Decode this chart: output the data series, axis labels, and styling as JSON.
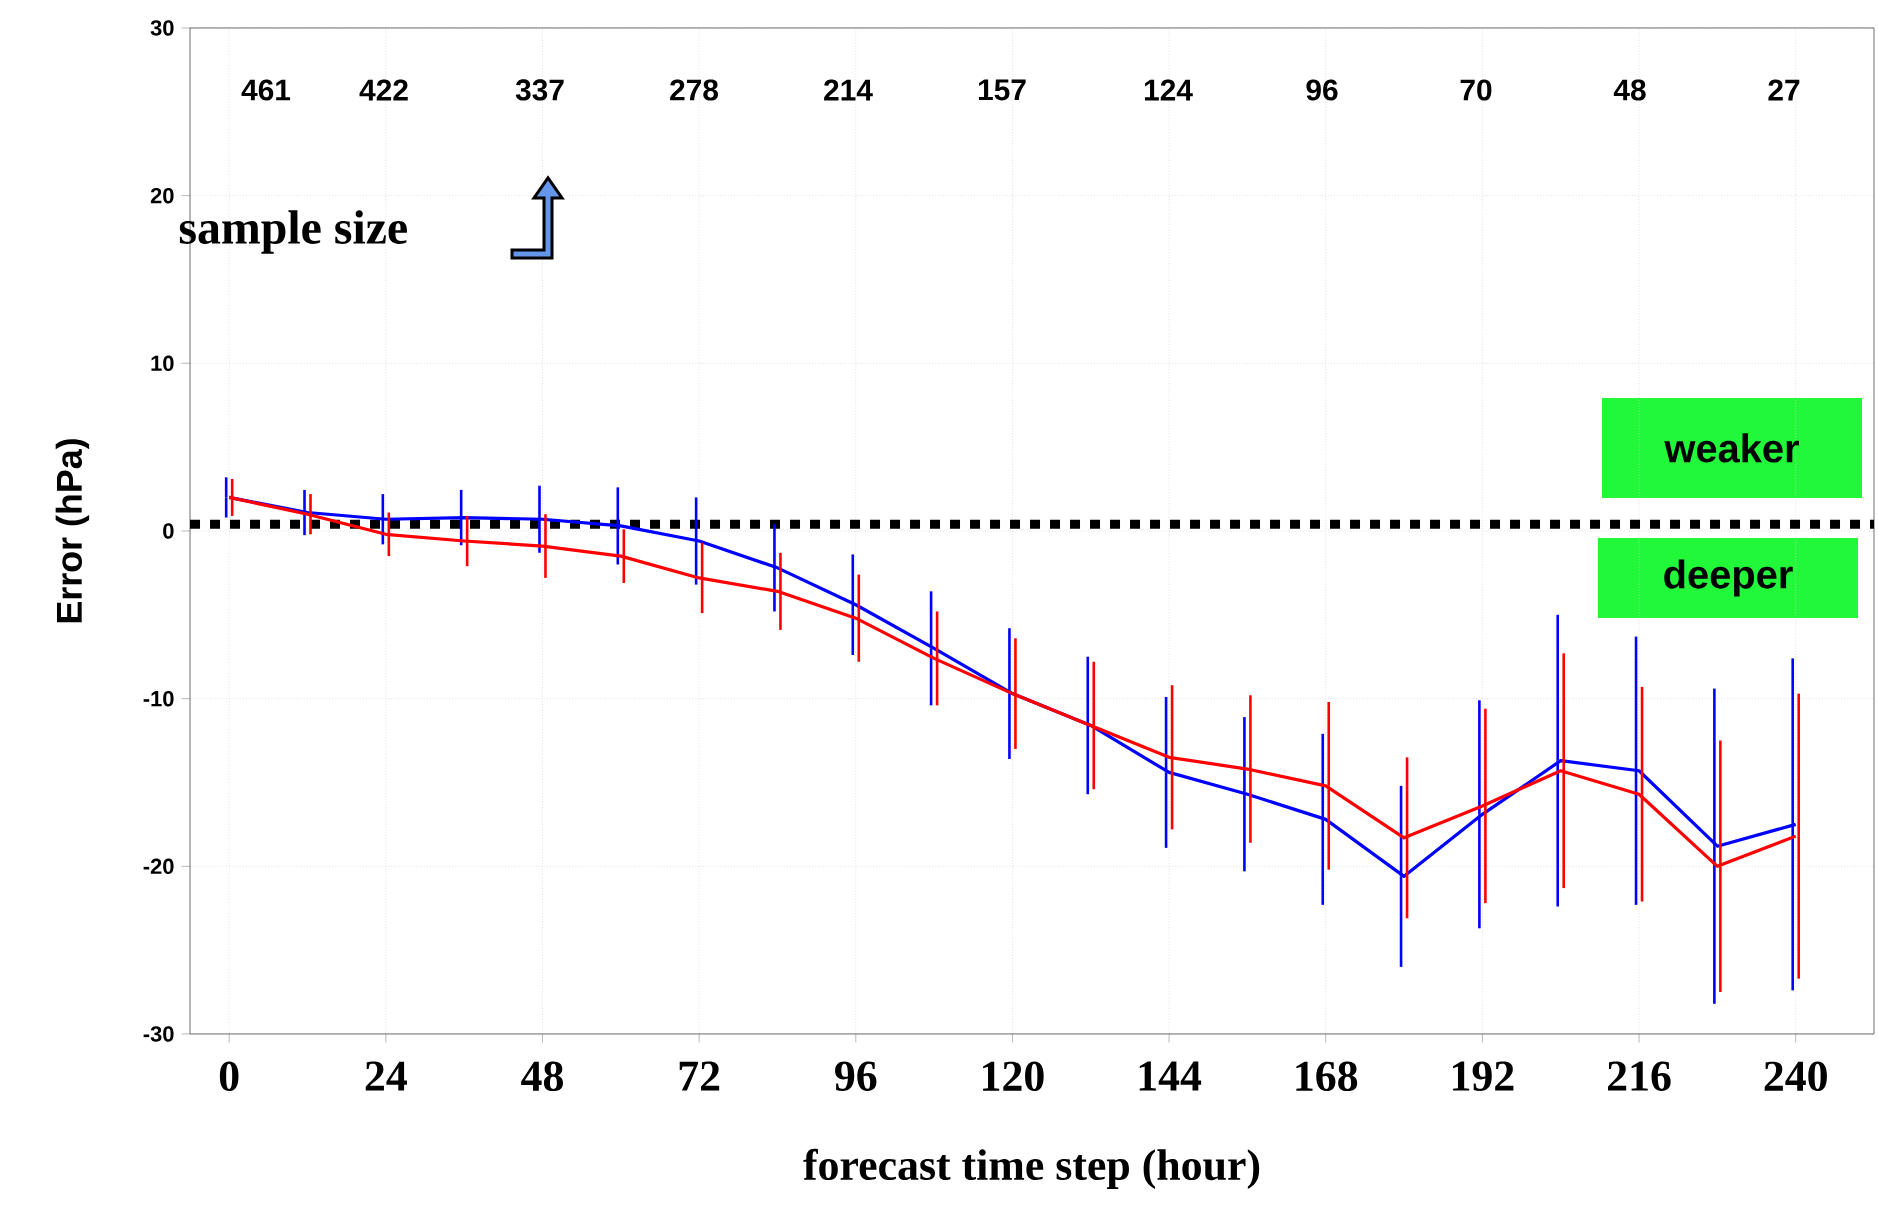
{
  "chart_data": {
    "type": "line",
    "xlabel": "forecast time step (hour)",
    "ylabel": "Error (hPa)",
    "x": [
      0,
      12,
      24,
      36,
      48,
      60,
      72,
      84,
      96,
      108,
      120,
      132,
      144,
      156,
      168,
      180,
      192,
      204,
      216,
      228,
      240
    ],
    "series": [
      {
        "color": "#0000ff",
        "values": [
          2.0,
          1.1,
          0.7,
          0.8,
          0.7,
          0.3,
          -0.6,
          -2.2,
          -4.4,
          -7.0,
          -9.7,
          -11.6,
          -14.4,
          -15.7,
          -17.2,
          -20.6,
          -16.9,
          -13.7,
          -14.3,
          -18.8,
          -17.5
        ],
        "errors": [
          1.2,
          1.35,
          1.5,
          1.65,
          2.0,
          2.3,
          2.6,
          2.6,
          3.0,
          3.4,
          3.9,
          4.1,
          4.5,
          4.6,
          5.1,
          5.4,
          6.8,
          8.7,
          8.0,
          9.4,
          9.9
        ]
      },
      {
        "color": "#ff0000",
        "values": [
          2.0,
          1.0,
          -0.2,
          -0.6,
          -0.9,
          -1.5,
          -2.8,
          -3.6,
          -5.2,
          -7.6,
          -9.7,
          -11.6,
          -13.5,
          -14.2,
          -15.2,
          -18.3,
          -16.4,
          -14.3,
          -15.7,
          -20.0,
          -18.2
        ],
        "errors": [
          1.1,
          1.2,
          1.3,
          1.5,
          1.9,
          1.6,
          2.1,
          2.3,
          2.6,
          2.8,
          3.3,
          3.8,
          4.3,
          4.4,
          5.0,
          4.8,
          5.8,
          7.0,
          6.4,
          7.5,
          8.5
        ]
      }
    ],
    "xlim": [
      -6,
      252
    ],
    "ylim": [
      -30,
      30
    ],
    "xticks": [
      0,
      24,
      48,
      72,
      96,
      120,
      144,
      168,
      192,
      216,
      240
    ],
    "yticks": [
      -30,
      -20,
      -10,
      0,
      10,
      20,
      30
    ],
    "grid": true,
    "marker": "none",
    "ref_lines": [
      {
        "axis": "y",
        "value": 0.4,
        "color": "#000000",
        "line_style": "dotted"
      }
    ],
    "annotations": [
      "461",
      "422",
      "337",
      "278",
      "214",
      "157",
      "124",
      "96",
      "70",
      "48",
      "27",
      "sample size",
      "weaker",
      "deeper"
    ]
  }
}
